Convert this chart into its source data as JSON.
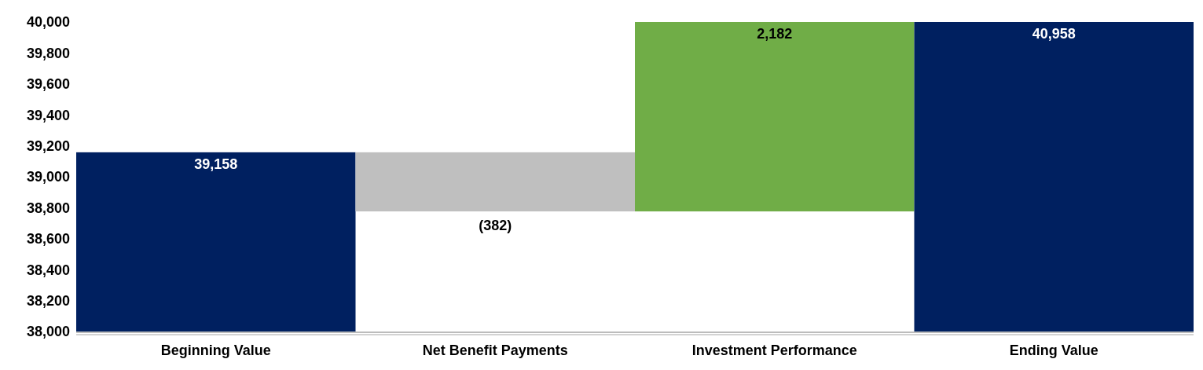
{
  "chart_data": {
    "type": "bar",
    "categories": [
      "Beginning Value",
      "Net Benefit Payments",
      "Investment Performance",
      "Ending Value"
    ],
    "values": [
      39158,
      -382,
      2182,
      40958
    ],
    "base": [
      0,
      39158,
      38776,
      0
    ],
    "colors": [
      "#002060",
      "#bfbfbf",
      "#70ad47",
      "#002060"
    ],
    "value_labels": [
      "39,158",
      "(382)",
      "2,182",
      "40,958"
    ],
    "ylim": [
      38000,
      40000
    ],
    "yticks": [
      {
        "value": 38000,
        "label": "38,000"
      },
      {
        "value": 38200,
        "label": "38,200"
      },
      {
        "value": 38400,
        "label": "38,400"
      },
      {
        "value": 38600,
        "label": "38,600"
      },
      {
        "value": 38800,
        "label": "38,800"
      },
      {
        "value": 39000,
        "label": "39,000"
      },
      {
        "value": 39200,
        "label": "39,200"
      },
      {
        "value": 39400,
        "label": "39,400"
      },
      {
        "value": 39600,
        "label": "39,600"
      },
      {
        "value": 39800,
        "label": "39,800"
      },
      {
        "value": 40000,
        "label": "40,000"
      }
    ],
    "grid": false
  }
}
